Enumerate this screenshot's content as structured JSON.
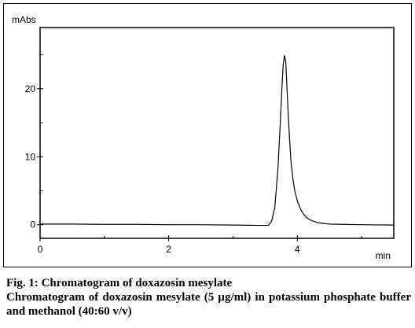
{
  "chart_data": {
    "type": "line",
    "ylabel": "mAbs",
    "xlabel": "min",
    "xlim": [
      0,
      5.5
    ],
    "ylim": [
      -2,
      29
    ],
    "x_ticks": [
      0,
      2,
      4
    ],
    "x_tick_labels": [
      "0",
      "2",
      "4"
    ],
    "y_ticks": [
      0,
      10,
      20
    ],
    "y_tick_labels": [
      "0",
      "10",
      "20"
    ],
    "grid": false,
    "series": [
      {
        "color": "#000000",
        "x": [
          0,
          0.5,
          1.0,
          1.5,
          2.0,
          2.5,
          3.0,
          3.4,
          3.55,
          3.6,
          3.65,
          3.7,
          3.73,
          3.76,
          3.78,
          3.8,
          3.82,
          3.84,
          3.86,
          3.88,
          3.9,
          3.93,
          3.96,
          4.0,
          4.05,
          4.1,
          4.15,
          4.2,
          4.3,
          4.4,
          4.5,
          4.7,
          5.0,
          5.5
        ],
        "y": [
          0.1,
          0.1,
          0.05,
          0.05,
          0.0,
          0.0,
          -0.05,
          -0.1,
          -0.1,
          0.5,
          2.5,
          8.5,
          14.0,
          20.0,
          23.5,
          24.9,
          24.0,
          20.0,
          16.0,
          12.5,
          9.5,
          6.8,
          5.0,
          3.5,
          2.3,
          1.5,
          1.0,
          0.7,
          0.35,
          0.2,
          0.1,
          0.05,
          0.0,
          -0.05
        ]
      }
    ]
  },
  "caption": {
    "title": "Fig. 1: Chromatogram of doxazosin mesylate",
    "body": "Chromatogram of doxazosin mesylate (5 µg/ml) in potassium phosphate buffer and methanol (40:60 v/v)"
  }
}
